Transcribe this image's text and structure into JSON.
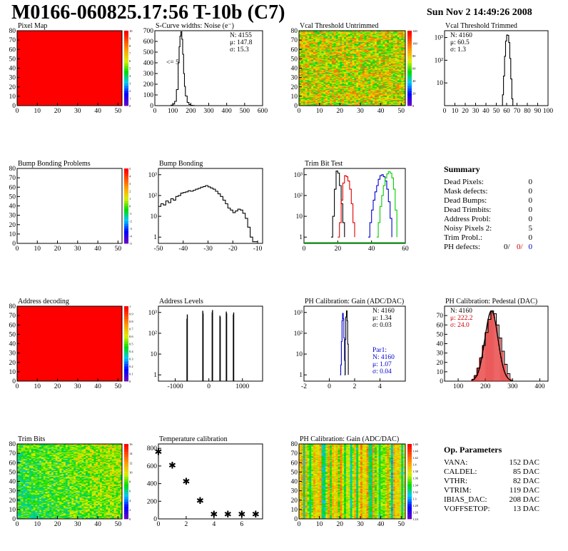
{
  "header": {
    "title": "M0166-060825.17:56 T-10b (C7)",
    "date": "Sun Nov  2 14:49:26 2008"
  },
  "colors": {
    "red_fill": "#ff0000",
    "black": "#000000",
    "red_line": "#e00000",
    "blue_line": "#0000cc",
    "green_line": "#00cc00",
    "stat_red": "#cc0000",
    "stat_blue": "#0000cc"
  },
  "chart_data": [
    {
      "id": "pixel-map",
      "type": "heatmap",
      "title": "Pixel Map",
      "xlim": [
        0,
        52
      ],
      "ylim": [
        0,
        80
      ],
      "xticks": [
        "0",
        "10",
        "20",
        "30",
        "40",
        "50"
      ],
      "yticks": [
        "0",
        "10",
        "20",
        "30",
        "40",
        "50",
        "60",
        "70",
        "80"
      ],
      "zticks": [
        "0",
        "1",
        "2",
        "3",
        "4",
        "5",
        "6",
        "7",
        "8",
        "9",
        "10"
      ],
      "fill": "uniform",
      "value": 10
    },
    {
      "id": "scurve-noise",
      "type": "line",
      "title": "S-Curve widths: Noise (e⁻)",
      "xlim": [
        0,
        600
      ],
      "ylim": [
        0,
        700
      ],
      "xticks": [
        "0",
        "100",
        "200",
        "300",
        "400",
        "500",
        "600"
      ],
      "yticks": [
        "0",
        "100",
        "200",
        "300",
        "400",
        "500",
        "600",
        "700"
      ],
      "stats": {
        "N": "N: 4155",
        "mean": "μ: 147.8",
        "sigma": "σ: 15.3"
      },
      "annotation": "<= 5",
      "x": [
        80,
        90,
        100,
        110,
        120,
        130,
        135,
        140,
        145,
        150,
        155,
        160,
        165,
        170,
        180,
        190,
        200,
        210,
        220,
        600
      ],
      "y": [
        0,
        5,
        15,
        40,
        150,
        400,
        550,
        650,
        690,
        620,
        480,
        300,
        180,
        90,
        30,
        10,
        3,
        1,
        0,
        0
      ]
    },
    {
      "id": "vcal-untrimmed",
      "type": "heatmap",
      "title": "Vcal Threshold Untrimmed",
      "xlim": [
        0,
        52
      ],
      "ylim": [
        0,
        80
      ],
      "xticks": [
        "0",
        "10",
        "20",
        "30",
        "40",
        "50"
      ],
      "yticks": [
        "0",
        "10",
        "20",
        "30",
        "40",
        "50",
        "60",
        "70",
        "80"
      ],
      "zticks": [
        "0",
        "20",
        "40",
        "60",
        "80",
        "100",
        "120"
      ],
      "fill": "noise",
      "palette": "orange-dominant"
    },
    {
      "id": "vcal-trimmed",
      "type": "line",
      "title": "Vcal Threshold Trimmed",
      "xlim": [
        0,
        100
      ],
      "ylim": [
        1,
        2000
      ],
      "yscale": "log",
      "xticks": [
        "0",
        "10",
        "20",
        "30",
        "40",
        "50",
        "60",
        "70",
        "80",
        "90",
        "100"
      ],
      "yticks": [
        "10",
        "10²",
        "10³"
      ],
      "stats": {
        "N": "N: 4160",
        "mean": "μ: 60.5",
        "sigma": "σ:  1.3"
      },
      "x": [
        55,
        56,
        57,
        58,
        59,
        60,
        61,
        62,
        63,
        64,
        65,
        66
      ],
      "y": [
        1,
        3,
        20,
        150,
        700,
        1300,
        1250,
        600,
        120,
        15,
        2,
        1
      ]
    },
    {
      "id": "bump-bonding-problems",
      "type": "heatmap",
      "title": "Bump Bonding Problems",
      "xlim": [
        0,
        52
      ],
      "ylim": [
        0,
        80
      ],
      "xticks": [
        "0",
        "10",
        "20",
        "30",
        "40",
        "50"
      ],
      "yticks": [
        "0",
        "10",
        "20",
        "30",
        "40",
        "50",
        "60",
        "70",
        "80"
      ],
      "zticks": [
        "-5",
        "-4",
        "-3",
        "-2",
        "-1",
        "0",
        "1",
        "2",
        "3",
        "4",
        "5"
      ],
      "fill": "empty"
    },
    {
      "id": "bump-bonding",
      "type": "line",
      "title": "Bump Bonding",
      "xlim": [
        -50,
        -8
      ],
      "ylim": [
        0.5,
        2000
      ],
      "yscale": "log",
      "xticks": [
        "-50",
        "-40",
        "-30",
        "-20",
        "-10"
      ],
      "yticks": [
        "1",
        "10",
        "10²",
        "10³"
      ],
      "x": [
        -50,
        -49,
        -48,
        -47,
        -46,
        -45,
        -44,
        -43,
        -42,
        -41,
        -40,
        -39,
        -38,
        -37,
        -36,
        -35,
        -34,
        -33,
        -32,
        -31,
        -30,
        -29,
        -28,
        -27,
        -26,
        -25,
        -24,
        -23,
        -22,
        -21,
        -20,
        -19,
        -18,
        -17,
        -16,
        -15,
        -14,
        -13,
        -12,
        -11,
        -10
      ],
      "y": [
        30,
        40,
        35,
        55,
        45,
        70,
        60,
        90,
        100,
        130,
        140,
        150,
        170,
        160,
        180,
        200,
        220,
        250,
        270,
        300,
        260,
        230,
        200,
        160,
        120,
        90,
        60,
        40,
        25,
        20,
        15,
        18,
        22,
        20,
        14,
        8,
        3,
        1,
        0.6,
        0.6,
        0.6
      ]
    },
    {
      "id": "trim-bit-test",
      "type": "line",
      "title": "Trim Bit Test",
      "xlim": [
        0,
        60
      ],
      "ylim": [
        0.5,
        2000
      ],
      "yscale": "log",
      "xticks": [
        "0",
        "20",
        "40",
        "60"
      ],
      "yticks": [
        "1",
        "10",
        "10²",
        "10³"
      ],
      "series": [
        {
          "color": "black",
          "x": [
            16,
            17,
            18,
            19,
            20,
            21,
            22,
            23,
            24
          ],
          "y": [
            1,
            10,
            200,
            1500,
            1200,
            300,
            40,
            5,
            1
          ]
        },
        {
          "color": "red",
          "x": [
            20,
            21,
            22,
            23,
            24,
            25,
            26,
            27,
            28,
            29,
            30
          ],
          "y": [
            1,
            5,
            60,
            400,
            900,
            800,
            500,
            200,
            40,
            5,
            1
          ]
        },
        {
          "color": "blue",
          "x": [
            38,
            39,
            40,
            41,
            42,
            43,
            44,
            45,
            46,
            47,
            48,
            49,
            50,
            51,
            52
          ],
          "y": [
            1,
            5,
            20,
            60,
            150,
            300,
            600,
            900,
            1000,
            800,
            500,
            200,
            50,
            8,
            1
          ]
        },
        {
          "color": "green",
          "x": [
            43,
            44,
            45,
            46,
            47,
            48,
            49,
            50,
            51,
            52,
            53,
            54,
            55
          ],
          "y": [
            1,
            5,
            30,
            100,
            300,
            700,
            1100,
            1400,
            1200,
            700,
            200,
            20,
            1
          ]
        }
      ]
    },
    {
      "id": "address-decoding",
      "type": "heatmap",
      "title": "Address decoding",
      "xlim": [
        0,
        52
      ],
      "ylim": [
        0,
        80
      ],
      "xticks": [
        "0",
        "10",
        "20",
        "30",
        "40",
        "50"
      ],
      "yticks": [
        "0",
        "10",
        "20",
        "30",
        "40",
        "50",
        "60",
        "70",
        "80"
      ],
      "zticks": [
        "0",
        "0.1",
        "0.2",
        "0.3",
        "0.4",
        "0.5",
        "0.6",
        "0.7",
        "0.8",
        "0.9",
        "1"
      ],
      "fill": "uniform",
      "value": 1
    },
    {
      "id": "address-levels",
      "type": "bar",
      "title": "Address Levels",
      "xlim": [
        -1500,
        1600
      ],
      "ylim": [
        0.5,
        2000
      ],
      "yscale": "log",
      "xticks": [
        "-1000",
        "0",
        "1000"
      ],
      "yticks": [
        "1",
        "10",
        "10²",
        "10³"
      ],
      "x": [
        -650,
        -640,
        -180,
        -170,
        100,
        110,
        330,
        340,
        520,
        530,
        730,
        740
      ],
      "y": [
        500,
        800,
        1200,
        900,
        1000,
        1300,
        700,
        600,
        1100,
        900,
        800,
        1000
      ]
    },
    {
      "id": "ph-gain",
      "type": "line",
      "title": "PH Calibration: Gain (ADC/DAC)",
      "xlim": [
        -2,
        6
      ],
      "ylim": [
        0.5,
        2000
      ],
      "yscale": "log",
      "xticks": [
        "-2",
        "0",
        "2",
        "4"
      ],
      "yticks": [
        "1",
        "10",
        "10²",
        "10³"
      ],
      "stats": {
        "N": "N: 4160",
        "mean": "μ: 1.34",
        "sigma": "σ: 0.03"
      },
      "fit": {
        "label": "Par1:",
        "N": "N: 4160",
        "mean": "μ: 1.07",
        "sigma": "σ: 0.04"
      },
      "series": [
        {
          "color": "blue",
          "x": [
            0.85,
            0.9,
            0.95,
            1.0,
            1.05,
            1.1,
            1.15,
            1.2,
            1.25
          ],
          "y": [
            1,
            3,
            40,
            400,
            900,
            500,
            60,
            5,
            1
          ]
        },
        {
          "color": "black",
          "x": [
            1.2,
            1.25,
            1.3,
            1.35,
            1.4,
            1.45,
            1.5
          ],
          "y": [
            1,
            50,
            600,
            1200,
            400,
            30,
            1
          ]
        }
      ]
    },
    {
      "id": "ph-pedestal",
      "type": "bar",
      "title": "PH Calibration: Pedestal (DAC)",
      "xlim": [
        50,
        430
      ],
      "ylim": [
        0,
        80
      ],
      "xticks": [
        "100",
        "200",
        "300",
        "400"
      ],
      "yticks": [
        "0",
        "10",
        "20",
        "30",
        "40",
        "50",
        "60",
        "70"
      ],
      "stats": {
        "N": "N: 4160",
        "mean": "μ: 222.2",
        "sigma": "σ: 24.0"
      },
      "x": [
        150,
        160,
        170,
        180,
        190,
        200,
        210,
        220,
        230,
        240,
        250,
        260,
        270,
        280,
        290
      ],
      "y": [
        2,
        6,
        14,
        25,
        38,
        52,
        66,
        75,
        72,
        60,
        46,
        32,
        18,
        8,
        3
      ]
    },
    {
      "id": "trim-bits",
      "type": "heatmap",
      "title": "Trim Bits",
      "xlim": [
        0,
        52
      ],
      "ylim": [
        0,
        80
      ],
      "xticks": [
        "0",
        "10",
        "20",
        "30",
        "40",
        "50"
      ],
      "yticks": [
        "0",
        "10",
        "20",
        "30",
        "40",
        "50",
        "60",
        "70",
        "80"
      ],
      "zticks": [
        "0",
        "2",
        "4",
        "6",
        "8",
        "10",
        "12",
        "14",
        "16"
      ],
      "fill": "noise",
      "palette": "green-dominant"
    },
    {
      "id": "temperature-calibration",
      "type": "scatter",
      "title": "Temperature calibration",
      "xlim": [
        0,
        7.5
      ],
      "ylim": [
        0,
        850
      ],
      "xticks": [
        "0",
        "2",
        "4",
        "6"
      ],
      "yticks": [
        "0",
        "200",
        "400",
        "600",
        "800"
      ],
      "x": [
        0,
        1,
        2,
        3,
        4,
        5,
        6,
        7
      ],
      "y": [
        765,
        610,
        430,
        210,
        55,
        55,
        55,
        55
      ]
    },
    {
      "id": "ph-gain-map",
      "type": "heatmap",
      "title": "PH Calibration: Gain (ADC/DAC)",
      "xlim": [
        0,
        52
      ],
      "ylim": [
        0,
        80
      ],
      "xticks": [
        "0",
        "10",
        "20",
        "30",
        "40",
        "50"
      ],
      "yticks": [
        "0",
        "10",
        "20",
        "30",
        "40",
        "50",
        "60",
        "70",
        "80"
      ],
      "zticks": [
        "1.24",
        "1.26",
        "1.28",
        "1.3",
        "1.32",
        "1.34",
        "1.36",
        "1.38",
        "1.4",
        "1.42",
        "1.44",
        "1.46"
      ],
      "fill": "columns",
      "palette": "yellow-dominant"
    }
  ],
  "summary": {
    "title": "Summary",
    "rows": [
      {
        "key": "Dead Pixels:",
        "value": "0"
      },
      {
        "key": "Mask defects:",
        "value": "0"
      },
      {
        "key": "Dead Bumps:",
        "value": "0"
      },
      {
        "key": "Dead Trimbits:",
        "value": "0"
      },
      {
        "key": "Address Probl:",
        "value": "0"
      },
      {
        "key": "Noisy Pixels 2:",
        "value": "5"
      },
      {
        "key": "Trim Probl.:",
        "value": "0"
      }
    ],
    "ph_label": "PH defects:",
    "ph_black": "0/",
    "ph_red": "0/",
    "ph_blue": "0"
  },
  "op_params": {
    "title": "Op. Parameters",
    "rows": [
      {
        "key": "VANA:",
        "value": "152 DAC"
      },
      {
        "key": "CALDEL:",
        "value": "85 DAC"
      },
      {
        "key": "VTHR:",
        "value": "82 DAC"
      },
      {
        "key": "VTRIM:",
        "value": "119 DAC"
      },
      {
        "key": "IBIAS_DAC:",
        "value": "208 DAC"
      },
      {
        "key": "VOFFSETOP:",
        "value": "13 DAC"
      }
    ]
  }
}
